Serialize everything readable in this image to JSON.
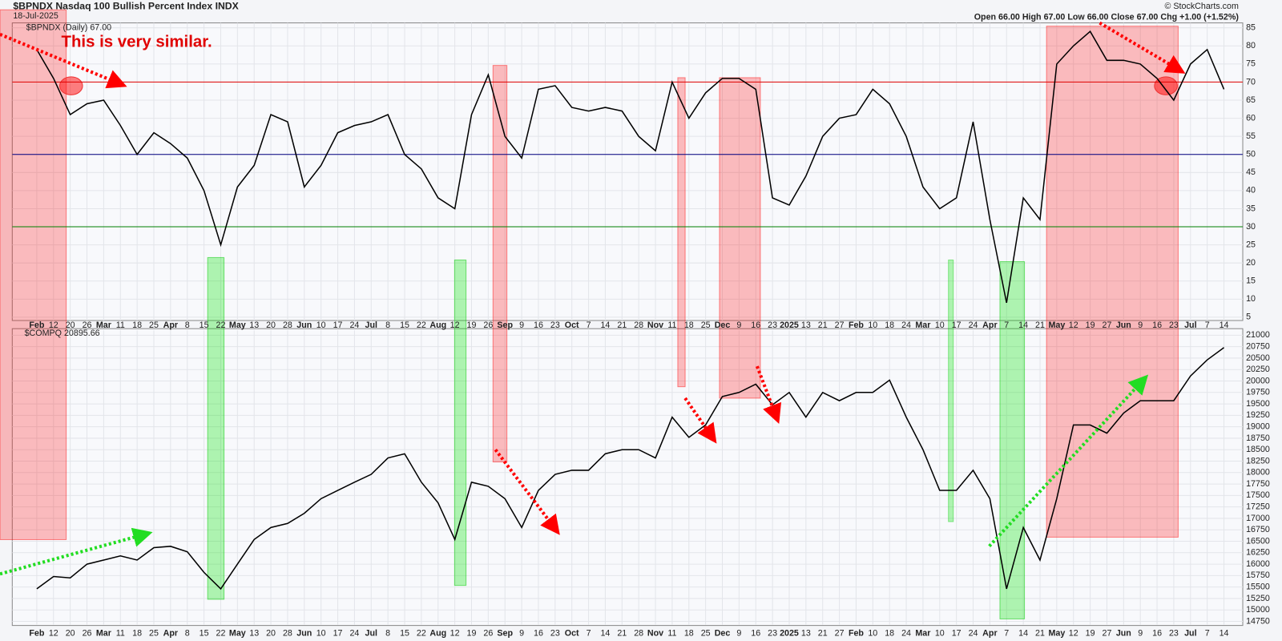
{
  "chart_data": [
    {
      "type": "line",
      "title": "$BPNDX Nasdaq 100 Bullish Percent Index INDX",
      "subtitle": "18-Jul-2025",
      "quote": "Open 66.00  High 67.00  Low 66.00  Close 67.00  Chg +1.00 (+1.52%)",
      "watermark": "© StockCharts.com",
      "legend_label": "$BPNDX (Daily) 67.00",
      "annotations": [
        "This is very similar."
      ],
      "categories": [
        "Feb",
        "12",
        "20",
        "26",
        "Mar",
        "11",
        "18",
        "25",
        "Apr",
        "8",
        "15",
        "22",
        "May",
        "13",
        "20",
        "28",
        "Jun",
        "10",
        "17",
        "24",
        "Jul",
        "8",
        "15",
        "22",
        "Aug",
        "12",
        "19",
        "26",
        "Sep",
        "9",
        "16",
        "23",
        "Oct",
        "7",
        "14",
        "21",
        "28",
        "Nov",
        "11",
        "18",
        "25",
        "Dec",
        "9",
        "16",
        "23",
        "2025",
        "13",
        "21",
        "27",
        "Feb",
        "10",
        "18",
        "24",
        "Mar",
        "10",
        "17",
        "24",
        "Apr",
        "7",
        "14",
        "21",
        "May",
        "12",
        "19",
        "27",
        "Jun",
        "9",
        "16",
        "23",
        "Jul",
        "7",
        "14"
      ],
      "series": [
        {
          "name": "$BPNDX",
          "color": "#000000",
          "values": [
            79,
            71,
            61,
            64,
            65,
            58,
            50,
            56,
            53,
            49,
            40,
            25,
            41,
            47,
            61,
            59,
            41,
            47,
            56,
            58,
            59,
            61,
            50,
            46,
            38,
            35,
            61,
            72,
            55,
            49,
            68,
            69,
            63,
            62,
            63,
            62,
            55,
            51,
            70,
            60,
            67,
            71,
            71,
            68,
            38,
            36,
            44,
            55,
            60,
            61,
            68,
            64,
            55,
            41,
            35,
            38,
            59,
            32,
            9,
            38,
            32,
            75,
            80,
            84,
            76,
            76,
            75,
            71,
            65,
            75,
            79,
            68
          ]
        }
      ],
      "ylim": [
        5,
        85
      ],
      "yticks": [
        5,
        10,
        15,
        20,
        25,
        30,
        35,
        40,
        45,
        50,
        55,
        60,
        65,
        70,
        75,
        80,
        85
      ],
      "hlines": [
        {
          "value": 70,
          "color": "#e00000"
        },
        {
          "value": 50,
          "color": "#000080"
        },
        {
          "value": 30,
          "color": "#008000"
        }
      ],
      "grid": true
    },
    {
      "type": "line",
      "legend_label": "$COMPQ 20895.66",
      "categories": [
        "Feb",
        "12",
        "20",
        "26",
        "Mar",
        "11",
        "18",
        "25",
        "Apr",
        "8",
        "15",
        "22",
        "May",
        "13",
        "20",
        "28",
        "Jun",
        "10",
        "17",
        "24",
        "Jul",
        "8",
        "15",
        "22",
        "Aug",
        "12",
        "19",
        "26",
        "Sep",
        "9",
        "16",
        "23",
        "Oct",
        "7",
        "14",
        "21",
        "28",
        "Nov",
        "11",
        "18",
        "25",
        "Dec",
        "9",
        "16",
        "23",
        "2025",
        "13",
        "21",
        "27",
        "Feb",
        "10",
        "18",
        "24",
        "Mar",
        "10",
        "17",
        "24",
        "Apr",
        "7",
        "14",
        "21",
        "May",
        "12",
        "19",
        "27",
        "Jun",
        "9",
        "16",
        "23",
        "Jul",
        "7",
        "14"
      ],
      "series": [
        {
          "name": "$COMPQ",
          "color": "#000000",
          "values": [
            15460,
            15730,
            15700,
            16000,
            16090,
            16180,
            16090,
            16360,
            16390,
            16270,
            15820,
            15460,
            16000,
            16540,
            16800,
            16890,
            17110,
            17430,
            17610,
            17790,
            17960,
            18320,
            18410,
            17790,
            17340,
            16540,
            17790,
            17700,
            17430,
            16800,
            17610,
            17960,
            18050,
            18050,
            18410,
            18500,
            18500,
            18320,
            19210,
            18770,
            19040,
            19660,
            19750,
            19930,
            19480,
            19750,
            19210,
            19750,
            19570,
            19750,
            19750,
            20020,
            19210,
            18500,
            17610,
            17610,
            18050,
            17430,
            15460,
            16800,
            16090,
            17430,
            19040,
            19040,
            18860,
            19300,
            19570,
            19570,
            19570,
            20110,
            20460,
            20730
          ]
        }
      ],
      "ylim": [
        14750,
        21000
      ],
      "yticks": [
        14750,
        15000,
        15250,
        15500,
        15750,
        16000,
        16250,
        16500,
        16750,
        17000,
        17250,
        17500,
        17750,
        18000,
        18250,
        18500,
        18750,
        19000,
        19250,
        19500,
        19750,
        20000,
        20250,
        20500,
        20750,
        21000
      ],
      "grid": true
    }
  ]
}
